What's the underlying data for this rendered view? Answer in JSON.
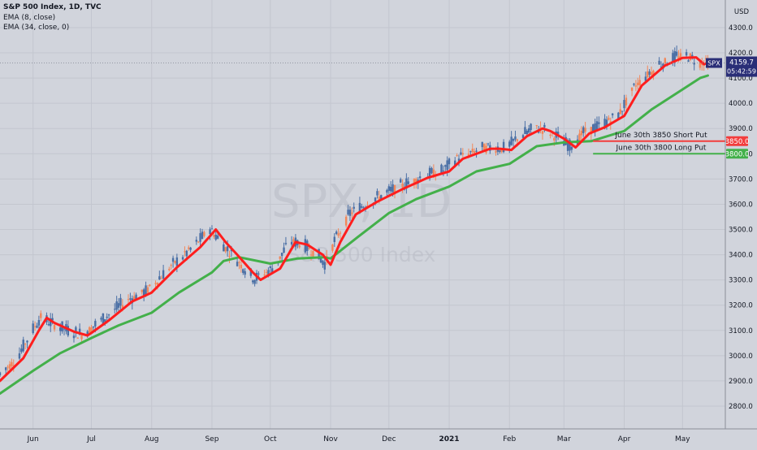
{
  "legend": {
    "symbol_line": "S&P 500 Index, 1D, TVC",
    "ema_short": "EMA (8, close)",
    "ema_long": "EMA (34, close, 0)"
  },
  "axis": {
    "unit_top": "USD"
  },
  "watermark": {
    "symbol": "SPX, 1D",
    "name": "S&P 500 Index"
  },
  "price_tag": {
    "symbol": "SPX",
    "price": "4159.7",
    "countdown": "05:42:59"
  },
  "colors": {
    "background": "#d1d4dc",
    "ema_short": "#ff1e1e",
    "ema_long": "#43b04a",
    "candle_up": "#4a6fa5",
    "candle_down": "#f2875a",
    "short_put": "#f23d3d",
    "long_put": "#43b04a",
    "last_price": "#2a2e77"
  },
  "chart_data": {
    "type": "line",
    "title": "S&P 500 Index, 1D, TVC",
    "ylabel": "USD",
    "ylim": [
      2730,
      4400
    ],
    "y_ticks": [
      2800,
      2900,
      3000,
      3100,
      3200,
      3300,
      3400,
      3500,
      3600,
      3700,
      3800,
      3900,
      4000,
      4100,
      4200,
      4300
    ],
    "y_tick_labels": [
      "2800.0",
      "2900.0",
      "3000.0",
      "3100.0",
      "3200.0",
      "3300.0",
      "3400.0",
      "3500.0",
      "3600.0",
      "3700.0",
      "3800.0",
      "3900.0",
      "4000.0",
      "4100.0",
      "4200.0",
      "4300.0"
    ],
    "x_range": [
      "2020-05-15",
      "2021-05-23"
    ],
    "x_ticks": [
      {
        "date": "2020-06-01",
        "label": "Jun"
      },
      {
        "date": "2020-07-01",
        "label": "Jul"
      },
      {
        "date": "2020-08-01",
        "label": "Aug"
      },
      {
        "date": "2020-09-01",
        "label": "Sep"
      },
      {
        "date": "2020-10-01",
        "label": "Oct"
      },
      {
        "date": "2020-11-01",
        "label": "Nov"
      },
      {
        "date": "2020-12-01",
        "label": "Dec"
      },
      {
        "date": "2021-01-01",
        "label": "2021"
      },
      {
        "date": "2021-02-01",
        "label": "Feb"
      },
      {
        "date": "2021-03-01",
        "label": "Mar"
      },
      {
        "date": "2021-04-01",
        "label": "Apr"
      },
      {
        "date": "2021-05-01",
        "label": "May"
      }
    ],
    "series": [
      {
        "name": "EMA (8, close)",
        "color": "#ff1e1e",
        "points": [
          [
            "2020-05-15",
            2900
          ],
          [
            "2020-05-27",
            2990
          ],
          [
            "2020-06-04",
            3100
          ],
          [
            "2020-06-08",
            3150
          ],
          [
            "2020-06-12",
            3130
          ],
          [
            "2020-06-22",
            3095
          ],
          [
            "2020-06-29",
            3080
          ],
          [
            "2020-07-01",
            3090
          ],
          [
            "2020-07-10",
            3140
          ],
          [
            "2020-07-22",
            3215
          ],
          [
            "2020-08-01",
            3250
          ],
          [
            "2020-08-14",
            3350
          ],
          [
            "2020-08-26",
            3430
          ],
          [
            "2020-09-03",
            3500
          ],
          [
            "2020-09-08",
            3450
          ],
          [
            "2020-09-14",
            3400
          ],
          [
            "2020-09-22",
            3330
          ],
          [
            "2020-09-26",
            3300
          ],
          [
            "2020-10-06",
            3345
          ],
          [
            "2020-10-14",
            3450
          ],
          [
            "2020-10-20",
            3440
          ],
          [
            "2020-10-28",
            3400
          ],
          [
            "2020-11-01",
            3360
          ],
          [
            "2020-11-06",
            3450
          ],
          [
            "2020-11-14",
            3560
          ],
          [
            "2020-11-25",
            3610
          ],
          [
            "2020-12-08",
            3660
          ],
          [
            "2020-12-21",
            3705
          ],
          [
            "2021-01-01",
            3730
          ],
          [
            "2021-01-08",
            3780
          ],
          [
            "2021-01-22",
            3820
          ],
          [
            "2021-01-27",
            3820
          ],
          [
            "2021-02-02",
            3815
          ],
          [
            "2021-02-10",
            3870
          ],
          [
            "2021-02-18",
            3900
          ],
          [
            "2021-02-22",
            3890
          ],
          [
            "2021-03-01",
            3860
          ],
          [
            "2021-03-07",
            3825
          ],
          [
            "2021-03-14",
            3880
          ],
          [
            "2021-03-22",
            3905
          ],
          [
            "2021-04-01",
            3950
          ],
          [
            "2021-04-10",
            4070
          ],
          [
            "2021-04-22",
            4150
          ],
          [
            "2021-05-01",
            4180
          ],
          [
            "2021-05-08",
            4182
          ],
          [
            "2021-05-12",
            4155
          ],
          [
            "2021-05-14",
            4160
          ]
        ]
      },
      {
        "name": "EMA (34, close, 0)",
        "color": "#43b04a",
        "points": [
          [
            "2020-05-15",
            2850
          ],
          [
            "2020-06-01",
            2940
          ],
          [
            "2020-06-15",
            3010
          ],
          [
            "2020-07-01",
            3070
          ],
          [
            "2020-07-15",
            3120
          ],
          [
            "2020-08-01",
            3170
          ],
          [
            "2020-08-15",
            3250
          ],
          [
            "2020-09-01",
            3330
          ],
          [
            "2020-09-07",
            3375
          ],
          [
            "2020-09-15",
            3390
          ],
          [
            "2020-10-01",
            3365
          ],
          [
            "2020-10-15",
            3385
          ],
          [
            "2020-10-28",
            3390
          ],
          [
            "2020-11-01",
            3385
          ],
          [
            "2020-11-15",
            3470
          ],
          [
            "2020-12-01",
            3565
          ],
          [
            "2020-12-15",
            3620
          ],
          [
            "2021-01-01",
            3670
          ],
          [
            "2021-01-15",
            3730
          ],
          [
            "2021-02-01",
            3760
          ],
          [
            "2021-02-15",
            3830
          ],
          [
            "2021-03-01",
            3845
          ],
          [
            "2021-03-15",
            3850
          ],
          [
            "2021-04-01",
            3890
          ],
          [
            "2021-04-15",
            3975
          ],
          [
            "2021-05-01",
            4055
          ],
          [
            "2021-05-10",
            4100
          ],
          [
            "2021-05-14",
            4110
          ]
        ]
      }
    ],
    "horizontal_lines": [
      {
        "name": "June 30th 3850 Short Put",
        "value": 3850,
        "value_label": "3850.0",
        "color": "#f23d3d"
      },
      {
        "name": "June 30th 3800 Long Put",
        "value": 3800,
        "value_label": "3800.0",
        "color": "#43b04a"
      }
    ],
    "last_price": 4159.7
  }
}
